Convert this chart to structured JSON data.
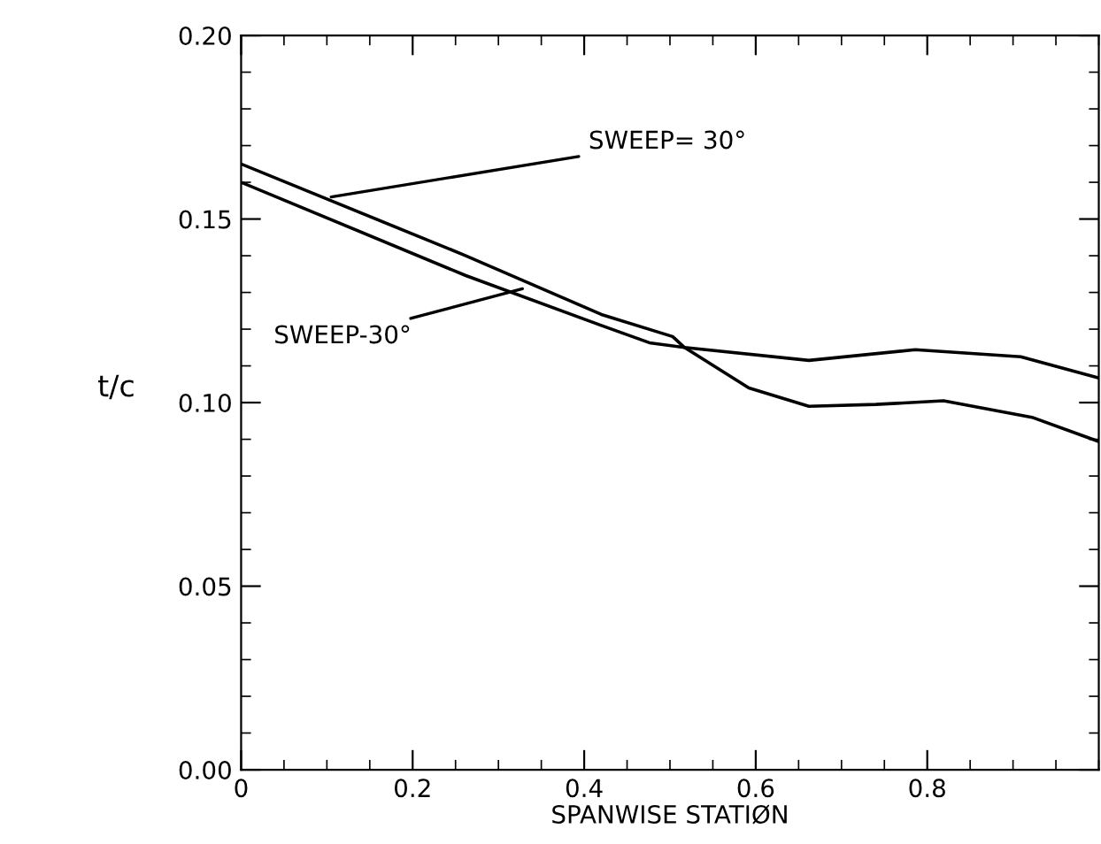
{
  "chart_data": {
    "type": "line",
    "xlabel": "SPANWISE STATIØN",
    "ylabel": "t/c",
    "series": [
      {
        "color": "#000000",
        "x": [
          0,
          0.262,
          0.42,
          0.503,
          0.517,
          0.592,
          0.662,
          0.74,
          0.819,
          0.922,
          1.0
        ],
        "values": [
          0.165,
          0.14,
          0.124,
          0.118,
          0.115,
          0.104,
          0.099,
          0.0995,
          0.1005,
          0.096,
          0.0894
        ]
      },
      {
        "color": "#000000",
        "x": [
          0,
          0.262,
          0.42,
          0.476,
          0.517,
          0.662,
          0.786,
          0.909,
          1.0
        ],
        "values": [
          0.16,
          0.1346,
          0.121,
          0.1163,
          0.115,
          0.1115,
          0.1144,
          0.1125,
          0.1067
        ]
      }
    ],
    "annotations": [
      {
        "text": "SWEEP= 30°",
        "x": 0.105,
        "y": 0.156
      },
      {
        "text": "SWEEP-30°",
        "x": 0.328,
        "y": 0.131
      }
    ],
    "xlim": [
      0,
      1.0
    ],
    "ylim": [
      0,
      0.2
    ],
    "xticks": [
      0,
      {
        "value": 0.2,
        "label": "0.2"
      },
      {
        "value": 0.4,
        "label": "0.4"
      },
      {
        "value": 0.6,
        "label": "0.6"
      },
      {
        "value": 0.8,
        "label": "0.8"
      }
    ],
    "yticks": [
      {
        "value": 0,
        "label": "0.00"
      },
      {
        "value": 0.05,
        "label": "0.05"
      },
      {
        "value": 0.1,
        "label": "0.10"
      },
      {
        "value": 0.15,
        "label": "0.15"
      },
      {
        "value": 0.2,
        "label": "0.20"
      }
    ],
    "grid": false,
    "marker": "none",
    "line_style": "solid"
  }
}
